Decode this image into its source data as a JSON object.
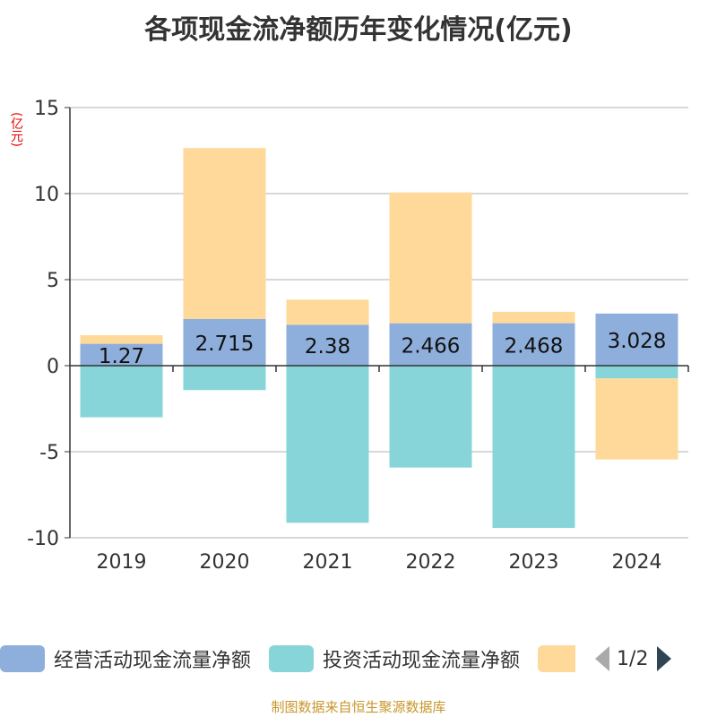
{
  "title": "各项现金流净额历年变化情况(亿元)",
  "unit_label": "(亿元)",
  "source": "制图数据来自恒生聚源数据库",
  "legend": {
    "page": "1/2"
  },
  "chart_data": {
    "type": "bar",
    "stacked": true,
    "title": "各项现金流净额历年变化情况(亿元)",
    "ylabel": "(亿元)",
    "ylim": [
      -10,
      15
    ],
    "yticks": [
      "15",
      "10",
      "5",
      "0",
      "-5",
      "-10"
    ],
    "ytick_values": [
      15,
      10,
      5,
      0,
      -5,
      -10
    ],
    "grid": true,
    "legend_position": "bottom",
    "categories": [
      "2019",
      "2020",
      "2021",
      "2022",
      "2023",
      "2024"
    ],
    "series": [
      {
        "name": "经营活动现金流量净额",
        "color": "#8eaedb",
        "values": [
          1.27,
          2.715,
          2.38,
          2.466,
          2.468,
          3.028
        ],
        "labels": [
          "1.27",
          "2.715",
          "2.38",
          "2.466",
          "2.468",
          "3.028"
        ]
      },
      {
        "name": "投资活动现金流量净额",
        "color": "#87d5d8",
        "values": [
          -3.0,
          -1.42,
          -9.13,
          -5.92,
          -9.43,
          -0.74
        ]
      },
      {
        "name": "",
        "color": "#fed999",
        "values": [
          0.5,
          9.93,
          1.46,
          7.6,
          0.66,
          -4.71
        ]
      }
    ]
  }
}
